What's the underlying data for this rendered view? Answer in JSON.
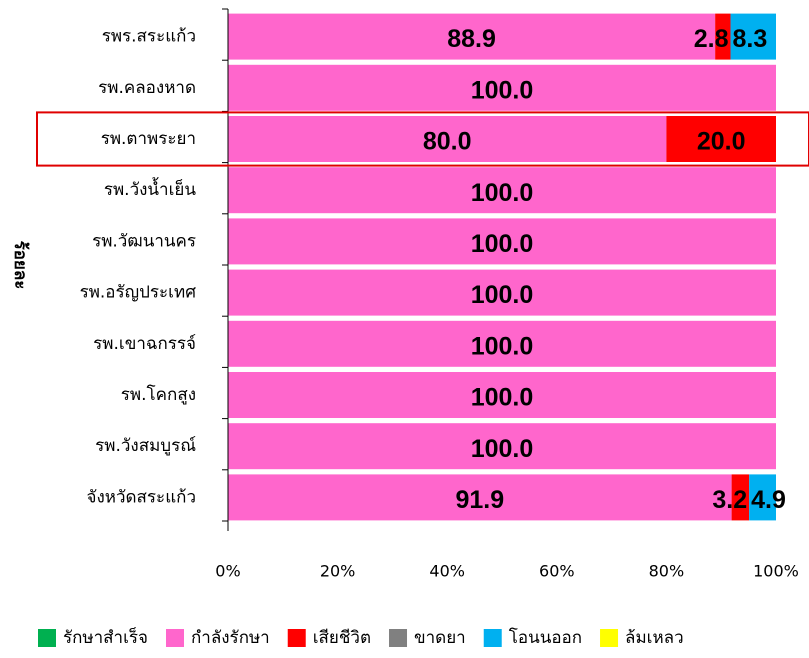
{
  "chart_data": {
    "type": "stacked_barh",
    "ylabel": "ร้อยละ",
    "categories": [
      "รพร.สระแก้ว",
      "รพ.คลองหาด",
      "รพ.ตาพระยา",
      "รพ.วังน้ำเย็น",
      "รพ.วัฒนานคร",
      "รพ.อรัญประเทศ",
      "รพ.เขาฉกรรจ์",
      "รพ.โคกสูง",
      "รพ.วังสมบูรณ์",
      "จังหวัดสระแก้ว"
    ],
    "series": [
      {
        "name": "รักษาสำเร็จ",
        "color": "#00b050",
        "values": [
          0,
          0,
          0,
          0,
          0,
          0,
          0,
          0,
          0,
          0
        ]
      },
      {
        "name": "กำลังรักษา",
        "color": "#ff66cc",
        "values": [
          88.9,
          100,
          80,
          100,
          100,
          100,
          100,
          100,
          100,
          91.9
        ],
        "value_labels": [
          "88.9",
          "100.0",
          "80.0",
          "100.0",
          "100.0",
          "100.0",
          "100.0",
          "100.0",
          "100.0",
          "91.9"
        ]
      },
      {
        "name": "เสียชีวิต",
        "color": "#ff0000",
        "values": [
          2.8,
          0,
          20,
          0,
          0,
          0,
          0,
          0,
          0,
          3.2
        ],
        "value_labels": [
          "2.8",
          null,
          "20.0",
          null,
          null,
          null,
          null,
          null,
          null,
          "3.2"
        ]
      },
      {
        "name": "ขาดยา",
        "color": "#808080",
        "values": [
          0,
          0,
          0,
          0,
          0,
          0,
          0,
          0,
          0,
          0
        ]
      },
      {
        "name": "โอนนออก",
        "color": "#00b0f0",
        "values": [
          8.3,
          0,
          0,
          0,
          0,
          0,
          0,
          0,
          0,
          4.9
        ],
        "value_labels": [
          "8.3",
          null,
          null,
          null,
          null,
          null,
          null,
          null,
          null,
          "4.9"
        ]
      },
      {
        "name": "ล้มเหลว",
        "color": "#ffff00",
        "values": [
          0,
          0,
          0,
          0,
          0,
          0,
          0,
          0,
          0,
          0
        ]
      }
    ],
    "xlim": [
      0,
      100
    ],
    "xticks": [
      {
        "value": 0,
        "label": "0%"
      },
      {
        "value": 20,
        "label": "20%"
      },
      {
        "value": 40,
        "label": "40%"
      },
      {
        "value": 60,
        "label": "60%"
      },
      {
        "value": 80,
        "label": "80%"
      },
      {
        "value": 100,
        "label": "100%"
      }
    ],
    "legend": "bottom"
  }
}
